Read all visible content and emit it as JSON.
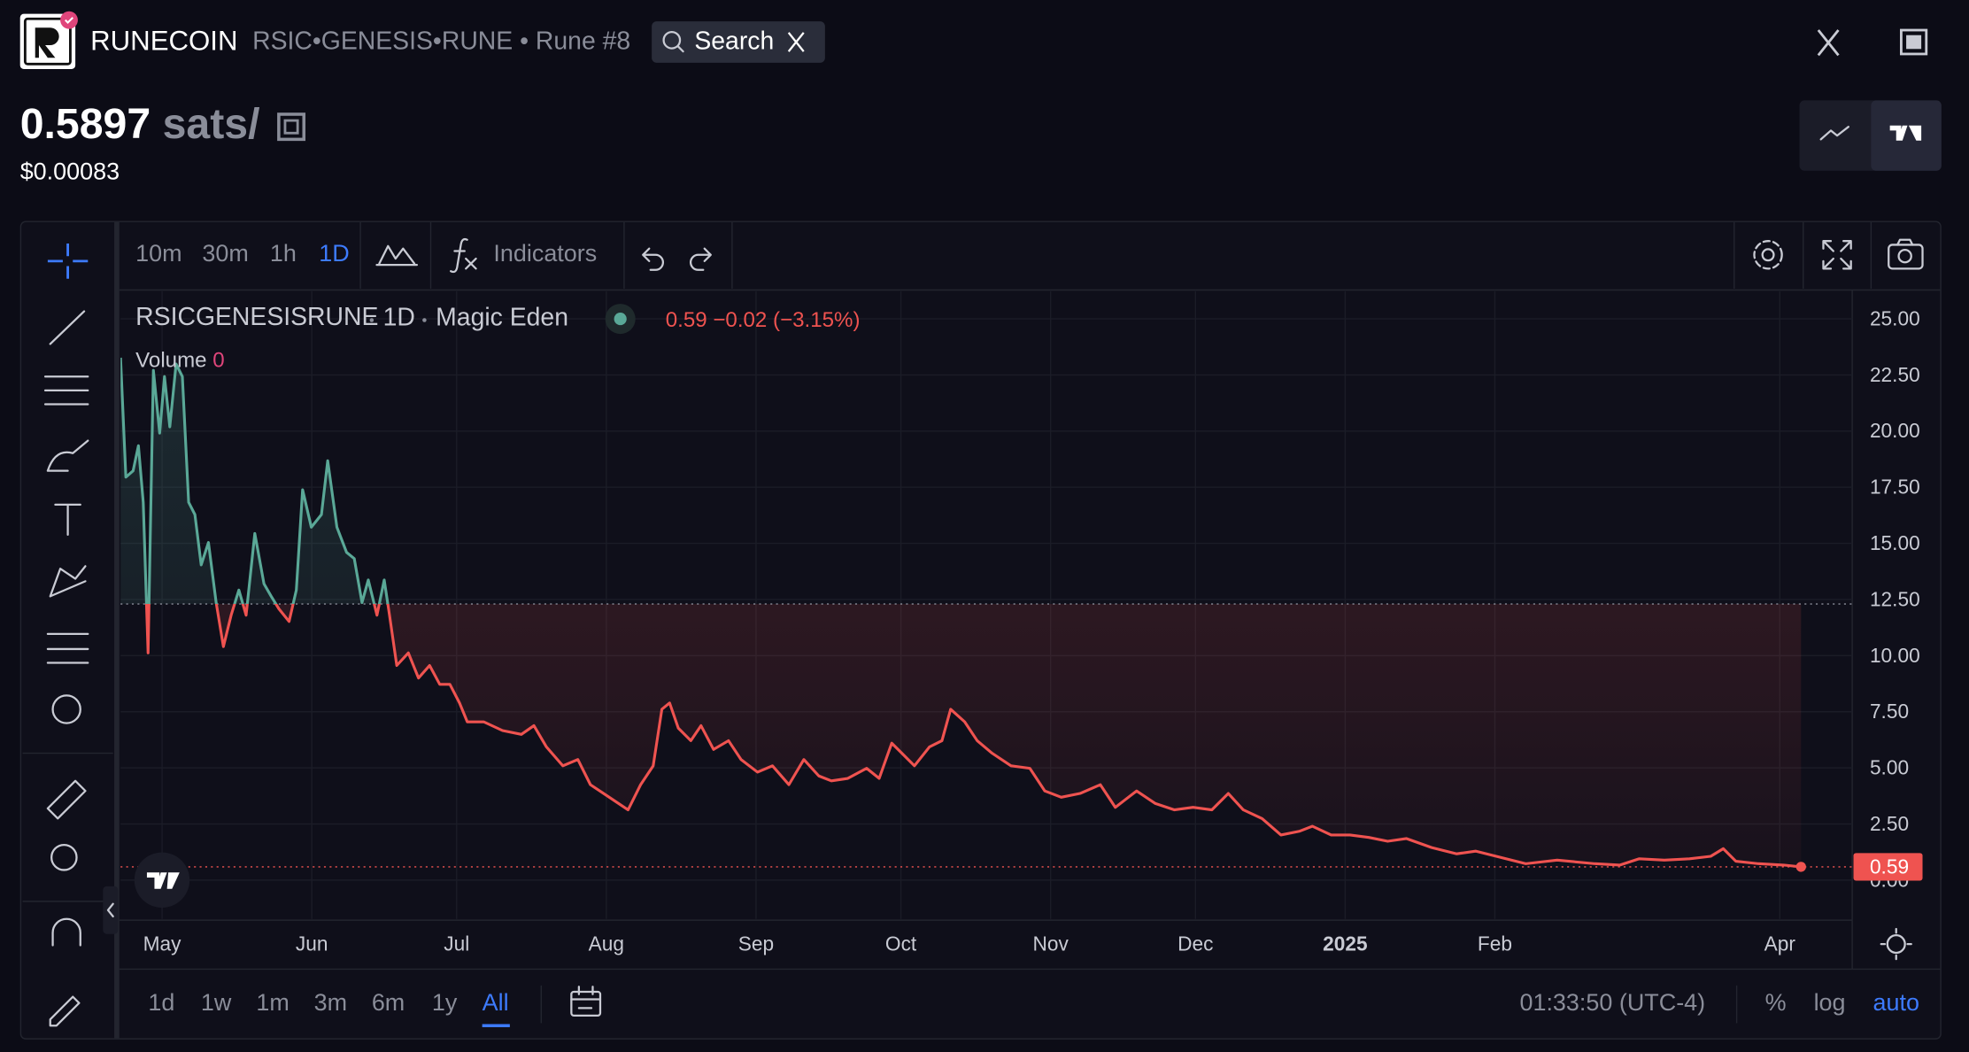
{
  "header": {
    "brand": "RUNECOIN",
    "rune": "RSIC•GENESIS•RUNE • Rune #8",
    "search": "Search"
  },
  "price": {
    "value": "0.5897",
    "unit": "sats/",
    "usd": "$0.00083"
  },
  "toolbar": {
    "intervals": [
      "10m",
      "30m",
      "1h",
      "1D"
    ],
    "indicators": "Indicators"
  },
  "bottom": {
    "ranges": [
      "1d",
      "1w",
      "1m",
      "3m",
      "6m",
      "1y",
      "All"
    ],
    "time": "01:33:50 (UTC-4)",
    "scale": [
      "%",
      "log",
      "auto"
    ]
  },
  "chart_data": {
    "type": "line",
    "legend_symbol": "RSICGENESISRUNE",
    "legend_interval": "1D",
    "legend_source": "Magic Eden",
    "legend_last": "0.59",
    "legend_change": "−0.02",
    "legend_change_pct": "(−3.15%)",
    "volume_label": "Volume",
    "volume_value": "0",
    "price_label": "0.59",
    "baseline": 12.3,
    "xlim": [
      -8.6,
      350
    ],
    "ylim": [
      -1.73,
      26.23
    ],
    "xticks": [
      {
        "value": 0,
        "label": "May"
      },
      {
        "value": 31,
        "label": "Jun"
      },
      {
        "value": 61,
        "label": "Jul"
      },
      {
        "value": 92,
        "label": "Aug"
      },
      {
        "value": 123,
        "label": "Sep"
      },
      {
        "value": 153,
        "label": "Oct"
      },
      {
        "value": 184,
        "label": "Nov"
      },
      {
        "value": 214,
        "label": "Dec"
      },
      {
        "value": 245,
        "label": "2025"
      },
      {
        "value": 276,
        "label": "Feb"
      },
      {
        "value": 335,
        "label": "Apr"
      }
    ],
    "yticks": [
      {
        "value": 0,
        "label": "0.00"
      },
      {
        "value": 2.5,
        "label": "2.50"
      },
      {
        "value": 5,
        "label": "5.00"
      },
      {
        "value": 7.5,
        "label": "7.50"
      },
      {
        "value": 10,
        "label": "10.00"
      },
      {
        "value": 12.5,
        "label": "12.50"
      },
      {
        "value": 15,
        "label": "15.00"
      },
      {
        "value": 17.5,
        "label": "17.50"
      },
      {
        "value": 20,
        "label": "20.00"
      },
      {
        "value": 22.5,
        "label": "22.50"
      },
      {
        "value": 25,
        "label": "25.00"
      }
    ],
    "grid": true,
    "up_color": "#5aa897",
    "down_color": "#ef5350",
    "x": [
      -8.6,
      -7.5,
      -6.0,
      -4.9,
      -3.9,
      -2.9,
      -1.8,
      -0.5,
      0.5,
      1.6,
      2.9,
      4.2,
      5.5,
      6.8,
      8.1,
      9.6,
      11.2,
      12.7,
      14.3,
      15.9,
      17.4,
      19.2,
      21.1,
      22.6,
      24.2,
      26.3,
      27.8,
      29.1,
      30.9,
      33.0,
      34.3,
      36.2,
      38.2,
      39.8,
      41.4,
      42.7,
      44.5,
      46.0,
      47.1,
      48.6,
      51.0,
      53.1,
      55.4,
      57.5,
      59.6,
      61.6,
      63.2,
      66.6,
      70.5,
      74.4,
      77.0,
      79.6,
      83.0,
      86.1,
      88.7,
      92.6,
      96.5,
      99.1,
      101.7,
      103.5,
      105.1,
      106.9,
      109.5,
      111.6,
      114.2,
      117.3,
      119.9,
      123.3,
      126.4,
      129.8,
      132.9,
      136.0,
      138.6,
      142.0,
      145.9,
      148.5,
      151.1,
      153.2,
      155.8,
      158.9,
      161.5,
      163.3,
      166.2,
      168.8,
      171.9,
      175.8,
      179.7,
      182.8,
      186.2,
      190.1,
      194.3,
      197.4,
      201.8,
      205.7,
      209.6,
      213.5,
      217.4,
      220.8,
      223.9,
      227.8,
      231.7,
      235.6,
      238.2,
      242.1,
      246.0,
      249.9,
      253.8,
      257.7,
      262.9,
      268.1,
      272.0,
      277.2,
      282.4,
      288.9,
      296.7,
      301.9,
      305.9,
      311.1,
      316.3,
      320.7,
      323.3,
      325.9,
      330.6,
      335.8,
      339.4
    ],
    "series": [
      {
        "name": "RSICGENESISRUNE",
        "values": [
          23.27,
          17.95,
          18.23,
          19.35,
          16.83,
          10.12,
          22.71,
          19.91,
          22.43,
          20.19,
          22.99,
          22.43,
          16.83,
          16.28,
          14.04,
          15.04,
          12.36,
          10.4,
          11.8,
          12.92,
          11.8,
          15.44,
          13.2,
          12.64,
          12.08,
          11.52,
          12.92,
          17.39,
          15.72,
          16.28,
          18.68,
          15.72,
          14.6,
          14.32,
          12.36,
          13.37,
          11.8,
          13.37,
          11.8,
          9.56,
          10.12,
          9.0,
          9.56,
          8.72,
          8.72,
          7.89,
          7.05,
          7.05,
          6.66,
          6.49,
          6.88,
          5.93,
          5.09,
          5.37,
          4.25,
          3.69,
          3.13,
          4.25,
          5.09,
          7.61,
          7.89,
          6.77,
          6.21,
          6.88,
          5.82,
          6.21,
          5.37,
          4.81,
          5.09,
          4.25,
          5.37,
          4.64,
          4.42,
          4.53,
          4.98,
          4.53,
          6.1,
          5.65,
          5.09,
          5.93,
          6.21,
          7.61,
          7.05,
          6.21,
          5.65,
          5.09,
          4.98,
          3.97,
          3.69,
          3.86,
          4.25,
          3.24,
          3.97,
          3.41,
          3.13,
          3.24,
          3.13,
          3.86,
          3.13,
          2.74,
          2.01,
          2.18,
          2.4,
          2.01,
          2.01,
          1.9,
          1.73,
          1.85,
          1.45,
          1.17,
          1.29,
          1.01,
          0.73,
          0.89,
          0.73,
          0.67,
          0.95,
          0.89,
          0.95,
          1.06,
          1.4,
          0.84,
          0.73,
          0.67,
          0.59
        ]
      }
    ]
  }
}
